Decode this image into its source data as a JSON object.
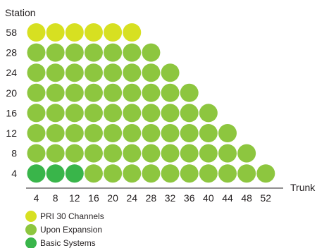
{
  "chart_data": {
    "type": "scatter",
    "xlabel": "Trunk",
    "ylabel": "Station",
    "x_ticks": [
      "4",
      "8",
      "12",
      "16",
      "20",
      "24",
      "28",
      "32",
      "36",
      "40",
      "44",
      "48",
      "52"
    ],
    "y_ticks": [
      "58",
      "28",
      "24",
      "20",
      "16",
      "12",
      "8",
      "4"
    ],
    "grid": false,
    "legend_position": "bottom-left",
    "series": [
      {
        "name": "PRI 30 Channels",
        "color": "#d7e021",
        "points": [
          [
            4,
            58
          ],
          [
            8,
            58
          ],
          [
            12,
            58
          ],
          [
            16,
            58
          ],
          [
            20,
            58
          ],
          [
            24,
            58
          ]
        ]
      },
      {
        "name": "Upon Expansion",
        "color": "#8dc63f",
        "points": [
          [
            4,
            28
          ],
          [
            8,
            28
          ],
          [
            12,
            28
          ],
          [
            16,
            28
          ],
          [
            20,
            28
          ],
          [
            24,
            28
          ],
          [
            28,
            28
          ],
          [
            4,
            24
          ],
          [
            8,
            24
          ],
          [
            12,
            24
          ],
          [
            16,
            24
          ],
          [
            20,
            24
          ],
          [
            24,
            24
          ],
          [
            28,
            24
          ],
          [
            32,
            24
          ],
          [
            4,
            20
          ],
          [
            8,
            20
          ],
          [
            12,
            20
          ],
          [
            16,
            20
          ],
          [
            20,
            20
          ],
          [
            24,
            20
          ],
          [
            28,
            20
          ],
          [
            32,
            20
          ],
          [
            36,
            20
          ],
          [
            4,
            16
          ],
          [
            8,
            16
          ],
          [
            12,
            16
          ],
          [
            16,
            16
          ],
          [
            20,
            16
          ],
          [
            24,
            16
          ],
          [
            28,
            16
          ],
          [
            32,
            16
          ],
          [
            36,
            16
          ],
          [
            40,
            16
          ],
          [
            4,
            12
          ],
          [
            8,
            12
          ],
          [
            12,
            12
          ],
          [
            16,
            12
          ],
          [
            20,
            12
          ],
          [
            24,
            12
          ],
          [
            28,
            12
          ],
          [
            32,
            12
          ],
          [
            36,
            12
          ],
          [
            40,
            12
          ],
          [
            44,
            12
          ],
          [
            4,
            8
          ],
          [
            8,
            8
          ],
          [
            12,
            8
          ],
          [
            16,
            8
          ],
          [
            20,
            8
          ],
          [
            24,
            8
          ],
          [
            28,
            8
          ],
          [
            32,
            8
          ],
          [
            36,
            8
          ],
          [
            40,
            8
          ],
          [
            44,
            8
          ],
          [
            48,
            8
          ],
          [
            16,
            4
          ],
          [
            20,
            4
          ],
          [
            24,
            4
          ],
          [
            28,
            4
          ],
          [
            32,
            4
          ],
          [
            36,
            4
          ],
          [
            40,
            4
          ],
          [
            44,
            4
          ],
          [
            48,
            4
          ],
          [
            52,
            4
          ]
        ]
      },
      {
        "name": "Basic Systems",
        "color": "#39b54a",
        "points": [
          [
            4,
            4
          ],
          [
            8,
            4
          ],
          [
            12,
            4
          ]
        ]
      }
    ]
  }
}
